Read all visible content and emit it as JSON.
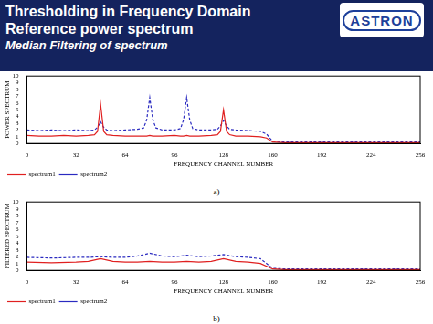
{
  "header": {
    "title": "Thresholding in Frequency Domain",
    "subtitle": "Reference power spectrum",
    "subheading": "Median Filtering of spectrum",
    "logo": "ASTRON"
  },
  "chart_data": [
    {
      "type": "line",
      "caption": "a)",
      "x_label": "FREQUENCY CHANNEL NUMBER",
      "y_label": "POWER SPECTRUM",
      "xlim": [
        0,
        256
      ],
      "xticks": [
        0,
        32,
        64,
        96,
        128,
        160,
        192,
        224,
        256
      ],
      "ylim": [
        0,
        10
      ],
      "yticks": [
        0,
        1,
        2,
        3,
        4,
        5,
        6,
        7,
        8,
        9,
        10
      ],
      "grid": false,
      "legend": "lower left",
      "x": [
        0,
        8,
        16,
        24,
        32,
        40,
        44,
        46,
        48,
        50,
        52,
        56,
        64,
        72,
        76,
        78,
        80,
        82,
        84,
        88,
        96,
        100,
        102,
        104,
        106,
        108,
        112,
        120,
        124,
        126,
        128,
        130,
        132,
        136,
        144,
        152,
        156,
        160,
        168,
        176,
        192,
        208,
        224,
        240,
        256
      ],
      "series": [
        {
          "name": "spectrum1",
          "color": "#e02020",
          "line_style": "solid",
          "values": [
            1.2,
            1.1,
            1.1,
            1.2,
            1.1,
            1.2,
            1.3,
            1.8,
            5.8,
            1.8,
            1.3,
            1.2,
            1.1,
            1.1,
            1.1,
            1.1,
            1.2,
            1.1,
            1.1,
            1.1,
            1.2,
            1.1,
            1.1,
            1.2,
            1.1,
            1.1,
            1.1,
            1.2,
            1.3,
            1.8,
            5.0,
            1.8,
            1.3,
            1.1,
            1.1,
            1.0,
            0.8,
            0.2,
            0.1,
            0.1,
            0.1,
            0.1,
            0.1,
            0.1,
            0.1
          ]
        },
        {
          "name": "spectrum2",
          "color": "#2a2ac0",
          "line_style": "dashed",
          "values": [
            2.0,
            1.9,
            2.0,
            1.9,
            2.0,
            1.9,
            2.0,
            2.4,
            3.2,
            2.4,
            2.0,
            1.9,
            2.0,
            2.1,
            2.3,
            3.5,
            6.8,
            3.5,
            2.3,
            2.0,
            2.0,
            2.2,
            3.5,
            6.8,
            3.5,
            2.2,
            2.0,
            2.0,
            2.1,
            2.6,
            3.4,
            2.6,
            2.1,
            2.0,
            1.9,
            1.8,
            1.4,
            0.3,
            0.2,
            0.2,
            0.2,
            0.2,
            0.2,
            0.2,
            0.2
          ]
        }
      ]
    },
    {
      "type": "line",
      "caption": "b)",
      "x_label": "FREQUENCY CHANNEL NUMBER",
      "y_label": "FILTERED SPECTRUM",
      "xlim": [
        0,
        256
      ],
      "xticks": [
        0,
        32,
        64,
        96,
        128,
        160,
        192,
        224,
        256
      ],
      "ylim": [
        0,
        10
      ],
      "yticks": [
        0,
        1,
        2,
        3,
        4,
        5,
        6,
        7,
        8,
        9,
        10
      ],
      "grid": false,
      "legend": "lower left",
      "x": [
        0,
        16,
        32,
        40,
        48,
        56,
        64,
        72,
        80,
        88,
        96,
        104,
        112,
        120,
        128,
        136,
        144,
        152,
        160,
        168,
        192,
        224,
        256
      ],
      "series": [
        {
          "name": "spectrum1",
          "color": "#e02020",
          "line_style": "solid",
          "values": [
            1.2,
            1.1,
            1.2,
            1.3,
            1.7,
            1.3,
            1.2,
            1.2,
            1.3,
            1.2,
            1.2,
            1.3,
            1.2,
            1.3,
            1.7,
            1.3,
            1.2,
            1.0,
            0.2,
            0.1,
            0.1,
            0.1,
            0.1
          ]
        },
        {
          "name": "spectrum2",
          "color": "#2a2ac0",
          "line_style": "dashed",
          "values": [
            1.9,
            1.8,
            1.9,
            1.9,
            2.0,
            1.9,
            1.9,
            2.1,
            2.5,
            2.1,
            2.0,
            2.2,
            2.0,
            2.1,
            2.3,
            2.0,
            1.9,
            1.7,
            0.3,
            0.2,
            0.2,
            0.2,
            0.2
          ]
        }
      ]
    }
  ]
}
